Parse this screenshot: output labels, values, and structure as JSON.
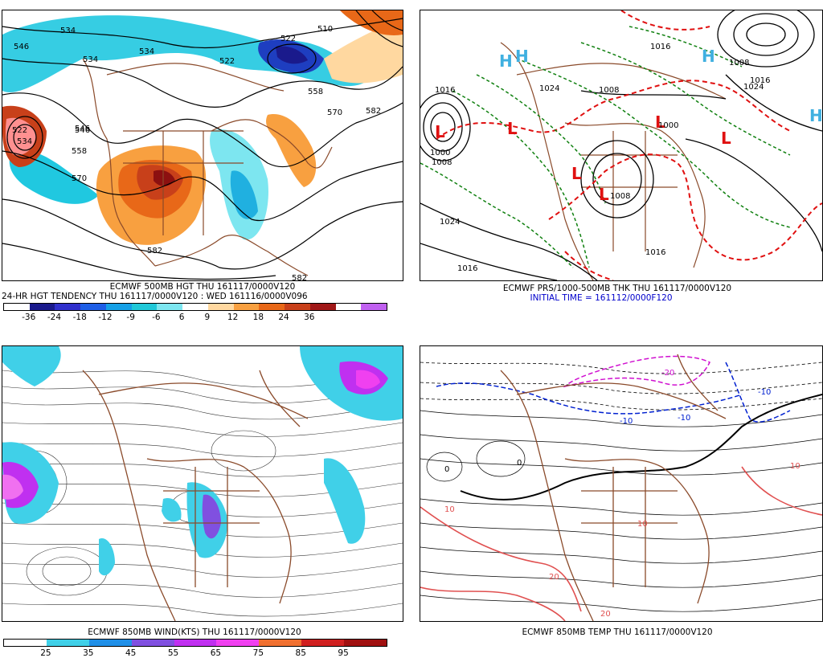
{
  "panels": {
    "top_left": {
      "title_line1": "ECMWF 500MB HGT THU 161117/0000V120",
      "title_line2": "24-HR HGT TENDENCY THU 161117/0000V120 : WED 161116/0000V096",
      "colorbar_ticks": [
        "-36",
        "-24",
        "-18",
        "-12",
        "-9",
        "-6",
        "6",
        "9",
        "12",
        "18",
        "24",
        "36"
      ],
      "colorbar_colors": [
        "#ffffff",
        "#1a1a8c",
        "#3030cc",
        "#1e5ee6",
        "#15a0e6",
        "#20c8d8",
        "#7de6f0",
        "#ffffff",
        "#ffd8a0",
        "#f8a040",
        "#e86818",
        "#c8401a",
        "#a01818",
        "#ffffff",
        "#c060f0"
      ],
      "contour_labels": [
        "546",
        "534",
        "534",
        "534",
        "522",
        "510",
        "522",
        "546",
        "558",
        "570",
        "582",
        "522",
        "534",
        "546",
        "558",
        "570",
        "582",
        "582"
      ]
    },
    "top_right": {
      "title_line1": "ECMWF PRS/1000-500MB THK THU 161117/0000V120",
      "title_line2": "INITIAL TIME = 161112/0000F120",
      "pressure_labels": [
        "1016",
        "1000",
        "1008",
        "1024",
        "1016",
        "1008",
        "1024",
        "1008",
        "1016",
        "1016",
        "1000",
        "1008",
        "1016",
        "1024"
      ],
      "center_markers": [
        "L",
        "L",
        "L",
        "L",
        "L",
        "L",
        "H",
        "H",
        "H",
        "H"
      ]
    },
    "bottom_left": {
      "title_line1": "ECMWF 850MB WIND(KTS) THU 161117/0000V120",
      "colorbar_ticks": [
        "25",
        "35",
        "45",
        "55",
        "65",
        "75",
        "85",
        "95"
      ],
      "colorbar_colors": [
        "#ffffff",
        "#40d0e8",
        "#2090e8",
        "#8050e0",
        "#c030f0",
        "#f040f0",
        "#f07030",
        "#d02020",
        "#a01010"
      ]
    },
    "bottom_right": {
      "title_line1": "ECMWF 850MB TEMP THU 161117/0000V120",
      "temp_labels": [
        "-10",
        "-10",
        "-20",
        "-10",
        "0",
        "0",
        "10",
        "10",
        "20",
        "10",
        "20"
      ]
    }
  },
  "colors": {
    "coastline": "#8a4a2a",
    "contour": "#000000",
    "thickness_red": "#e01010",
    "thickness_green": "#108010",
    "cold_blue": "#0020d0",
    "cold_magenta": "#d010d0",
    "warm_pink": "#e05050"
  }
}
